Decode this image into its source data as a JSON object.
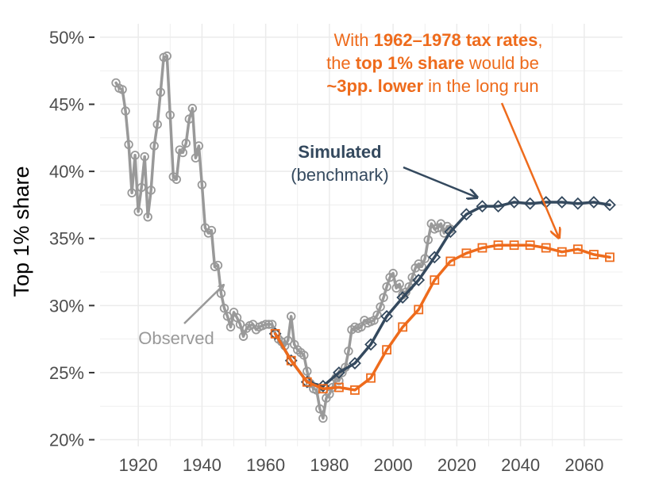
{
  "chart_data": {
    "type": "line",
    "title": "",
    "xlabel": "",
    "ylabel": "Top 1% share",
    "xlim": [
      1908,
      2072
    ],
    "ylim": [
      19.5,
      51
    ],
    "x_ticks": [
      1920,
      1940,
      1960,
      1980,
      2000,
      2020,
      2040,
      2060
    ],
    "x_tick_labels": [
      "1920",
      "1940",
      "1960",
      "1980",
      "2000",
      "2020",
      "2040",
      "2060"
    ],
    "y_ticks": [
      20,
      25,
      30,
      35,
      40,
      45,
      50
    ],
    "y_tick_labels": [
      "20%",
      "25%",
      "30%",
      "35%",
      "40%",
      "45%",
      "50%"
    ],
    "grid": true,
    "colors": {
      "observed": "#999999",
      "simulated": "#34495e",
      "counterfactual": "#ee6b1c",
      "grid": "#ebebeb"
    },
    "series": [
      {
        "name": "Observed",
        "marker": "circle",
        "x": [
          1913,
          1914,
          1915,
          1916,
          1917,
          1918,
          1919,
          1920,
          1921,
          1922,
          1923,
          1924,
          1925,
          1926,
          1927,
          1928,
          1929,
          1930,
          1931,
          1932,
          1933,
          1934,
          1935,
          1936,
          1937,
          1938,
          1939,
          1940,
          1941,
          1942,
          1943,
          1944,
          1945,
          1946,
          1947,
          1948,
          1949,
          1950,
          1951,
          1952,
          1953,
          1954,
          1955,
          1956,
          1957,
          1958,
          1959,
          1960,
          1961,
          1962,
          1963,
          1964,
          1965,
          1966,
          1967,
          1968,
          1969,
          1970,
          1971,
          1972,
          1973,
          1974,
          1975,
          1976,
          1977,
          1978,
          1979,
          1980,
          1981,
          1982,
          1983,
          1984,
          1985,
          1986,
          1987,
          1988,
          1989,
          1990,
          1991,
          1992,
          1993,
          1994,
          1995,
          1996,
          1997,
          1998,
          1999,
          2000,
          2001,
          2002,
          2003,
          2004,
          2005,
          2006,
          2007,
          2008,
          2009,
          2010,
          2011,
          2012,
          2013,
          2014,
          2015,
          2016,
          2017,
          2018
        ],
        "values": [
          46.6,
          46.2,
          46.1,
          44.5,
          42.0,
          38.4,
          41.2,
          37.0,
          38.8,
          41.1,
          36.6,
          38.6,
          41.9,
          43.5,
          45.9,
          48.5,
          48.6,
          44.2,
          39.6,
          39.4,
          41.6,
          41.4,
          42.1,
          43.9,
          44.7,
          41.0,
          41.9,
          39.0,
          35.8,
          35.4,
          35.6,
          32.9,
          33.0,
          30.9,
          29.8,
          29.2,
          28.4,
          29.5,
          29.1,
          28.6,
          27.7,
          28.3,
          28.5,
          28.6,
          28.2,
          28.4,
          28.5,
          28.6,
          28.6,
          28.6,
          27.9,
          27.5,
          27.3,
          27.0,
          27.4,
          29.2,
          27.1,
          26.7,
          26.5,
          26.3,
          25.1,
          24.2,
          23.8,
          23.7,
          22.3,
          21.6,
          23.1,
          23.4,
          23.9,
          24.6,
          24.4,
          25.0,
          25.4,
          26.6,
          28.2,
          28.4,
          28.3,
          28.4,
          28.9,
          28.7,
          28.8,
          28.9,
          29.3,
          29.9,
          30.6,
          31.4,
          32.1,
          32.4,
          31.3,
          31.6,
          30.8,
          31.0,
          31.4,
          32.1,
          32.8,
          33.1,
          32.9,
          33.5,
          34.9,
          36.1,
          35.7,
          35.8,
          36.1,
          35.4,
          35.9,
          35.7
        ]
      },
      {
        "name": "Simulated (benchmark)",
        "marker": "diamond",
        "x": [
          1963,
          1968,
          1973,
          1978,
          1983,
          1988,
          1993,
          1998,
          2003,
          2008,
          2013,
          2018,
          2023,
          2028,
          2033,
          2038,
          2043,
          2048,
          2053,
          2058,
          2063,
          2068
        ],
        "values": [
          27.9,
          25.9,
          24.3,
          24.0,
          25.0,
          25.7,
          27.1,
          29.2,
          30.6,
          31.9,
          33.6,
          35.5,
          36.8,
          37.4,
          37.4,
          37.7,
          37.6,
          37.7,
          37.7,
          37.6,
          37.7,
          37.5
        ]
      },
      {
        "name": "Counterfactual (1962-1978 tax rates)",
        "marker": "square",
        "x": [
          1963,
          1968,
          1973,
          1978,
          1983,
          1988,
          1993,
          1998,
          2003,
          2008,
          2013,
          2018,
          2023,
          2028,
          2033,
          2038,
          2043,
          2048,
          2053,
          2058,
          2063,
          2068
        ],
        "values": [
          27.9,
          25.9,
          24.3,
          23.8,
          23.9,
          23.7,
          24.6,
          26.7,
          28.4,
          29.7,
          31.9,
          33.3,
          33.9,
          34.3,
          34.5,
          34.5,
          34.5,
          34.3,
          34.0,
          34.2,
          33.8,
          33.6
        ]
      }
    ],
    "annotations": {
      "counterfactual": {
        "line1": {
          "t1": "With ",
          "t2": "1962–1978 tax rates",
          "t3": ","
        },
        "line2": {
          "t1": "the ",
          "t2": "top 1% share",
          "t3": " would be"
        },
        "line3": {
          "t1": "~3pp. lower",
          "t2": " in the long run"
        }
      },
      "simulated": {
        "line1": "Simulated",
        "line2": "(benchmark)"
      },
      "observed": {
        "label": "Observed"
      }
    }
  }
}
